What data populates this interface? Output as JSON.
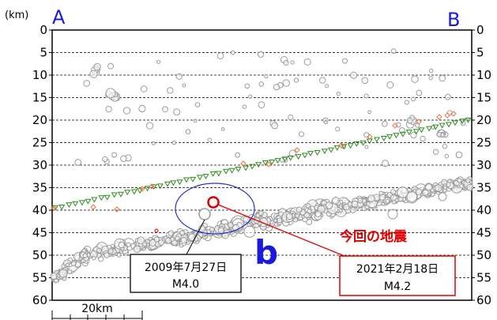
{
  "chart_data": {
    "type": "scatter",
    "title": "",
    "ylabel": "(km)",
    "y_unit": "(km)",
    "ylim": [
      0,
      60
    ],
    "y_inverted": true,
    "y_ticks": [
      "0",
      "5",
      "10",
      "15",
      "20",
      "25",
      "30",
      "35",
      "40",
      "45",
      "50",
      "55",
      "60"
    ],
    "grid": "horizontal dashed every 5 km",
    "end_labels": {
      "left": "A",
      "right": "B"
    },
    "region_label": "b",
    "scale_bar_label": "20km",
    "colors": {
      "event": "#9a9a9a",
      "event_fill": "#ffffff",
      "highlight": "#e00000",
      "triangle_stroke": "#2e8b1e",
      "diamond_stroke": "#f07040",
      "ellipse": "#2233cc",
      "grid": "#000000",
      "label_blue": "#1a1adc",
      "callout_red": "#e00000"
    },
    "annotations": {
      "event_2009": {
        "date": "2009年7月27日",
        "mag": "M4.0"
      },
      "event_2021": {
        "date": "2021年2月18日",
        "mag": "M4.2",
        "title": "今回の地震"
      }
    }
  }
}
